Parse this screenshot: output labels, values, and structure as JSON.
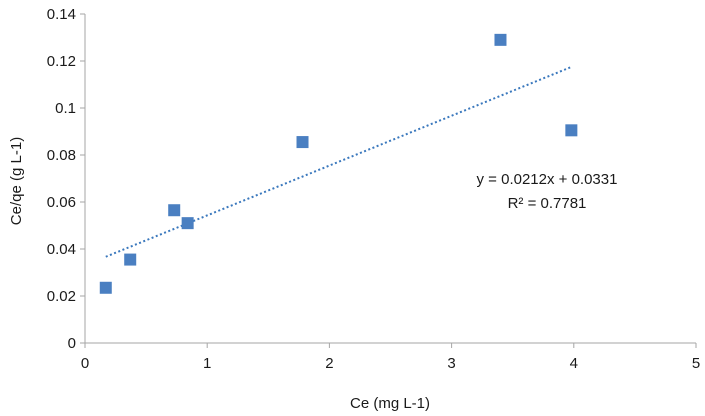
{
  "chart_data": {
    "type": "scatter",
    "xlabel": "Ce (mg L-1)",
    "ylabel": "Ce/qe (g L-1)",
    "xlim": [
      0,
      5
    ],
    "ylim": [
      0,
      0.14
    ],
    "xticks": [
      0,
      1,
      2,
      3,
      4,
      5
    ],
    "xtick_labels": [
      "0",
      "1",
      "2",
      "3",
      "4",
      "5"
    ],
    "yticks": [
      0,
      0.02,
      0.04,
      0.06,
      0.08,
      0.1,
      0.12,
      0.14
    ],
    "ytick_labels": [
      "0",
      "0.02",
      "0.04",
      "0.06",
      "0.08",
      "0.1",
      "0.12",
      "0.14"
    ],
    "grid": false,
    "legend": "none",
    "series": [
      {
        "marker": "square",
        "color": "#4a7fc1",
        "points": [
          {
            "x": 0.17,
            "y": 0.0235
          },
          {
            "x": 0.37,
            "y": 0.0355
          },
          {
            "x": 0.73,
            "y": 0.0565
          },
          {
            "x": 0.84,
            "y": 0.051
          },
          {
            "x": 1.78,
            "y": 0.0855
          },
          {
            "x": 3.4,
            "y": 0.129
          },
          {
            "x": 3.98,
            "y": 0.0905
          }
        ]
      }
    ],
    "trendline": {
      "type": "linear",
      "style": "dotted",
      "color": "#3a78bd",
      "slope": 0.0212,
      "intercept": 0.0331,
      "x_range": [
        0.17,
        3.98
      ]
    },
    "annotations": {
      "equation": "y = 0.0212x + 0.0331",
      "r_squared": "R² = 0.7781"
    },
    "colors": {
      "axis": "#a6a6a6",
      "text": "#1a1a1a"
    }
  }
}
